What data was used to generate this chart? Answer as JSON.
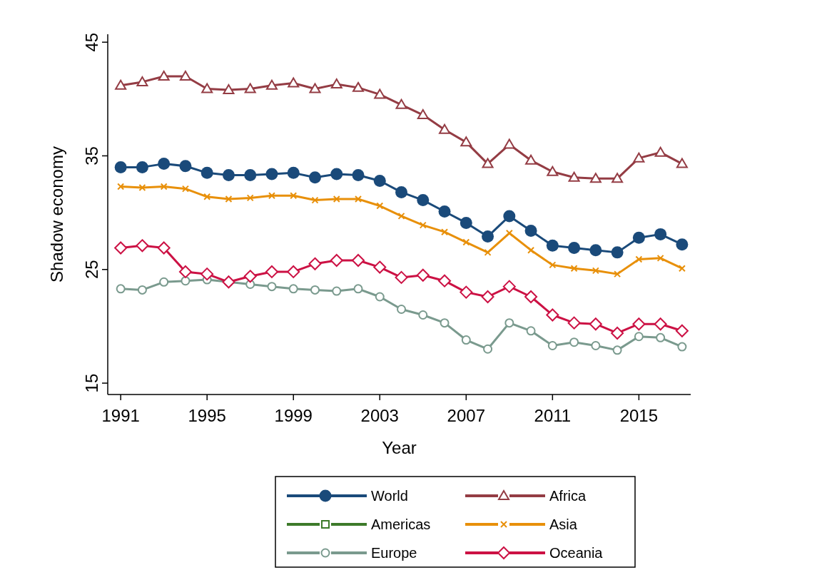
{
  "chart_data": {
    "type": "line",
    "xlabel": "Year",
    "ylabel": "Shadow economy",
    "x": [
      1991,
      1992,
      1993,
      1994,
      1995,
      1996,
      1997,
      1998,
      1999,
      2000,
      2001,
      2002,
      2003,
      2004,
      2005,
      2006,
      2007,
      2008,
      2009,
      2010,
      2011,
      2012,
      2013,
      2014,
      2015,
      2016,
      2017
    ],
    "xlim": [
      1990.4,
      2017.4
    ],
    "xticks": [
      1991,
      1995,
      1999,
      2003,
      2007,
      2011,
      2015
    ],
    "ylim": [
      14,
      45.7
    ],
    "yticks": [
      15,
      25,
      35,
      45
    ],
    "grid": false,
    "legend": "bottom",
    "line_style": "solid",
    "series": [
      {
        "name": "World",
        "color": "#1a4a7a",
        "marker": "circle",
        "values": [
          34.0,
          34.0,
          34.3,
          34.1,
          33.5,
          33.3,
          33.3,
          33.4,
          33.5,
          33.1,
          33.4,
          33.3,
          32.8,
          31.8,
          31.1,
          30.1,
          29.1,
          27.9,
          29.7,
          28.4,
          27.1,
          26.9,
          26.7,
          26.5,
          27.8,
          28.1,
          27.2
        ]
      },
      {
        "name": "Africa",
        "color": "#943c44",
        "marker": "triangle",
        "values": [
          41.2,
          41.5,
          42.0,
          42.0,
          40.9,
          40.8,
          40.9,
          41.2,
          41.4,
          40.9,
          41.3,
          41.0,
          40.4,
          39.5,
          38.6,
          37.3,
          36.2,
          34.3,
          36.0,
          34.6,
          33.6,
          33.1,
          33.0,
          33.0,
          34.8,
          35.3,
          34.3
        ]
      },
      {
        "name": "Americas",
        "color": "#3d7a2a",
        "marker": "square",
        "values": [
          null,
          null,
          null,
          null,
          null,
          null,
          null,
          null,
          null,
          null,
          null,
          null,
          null,
          null,
          null,
          null,
          null,
          null,
          null,
          null,
          null,
          null,
          null,
          null,
          null,
          null,
          null
        ]
      },
      {
        "name": "Asia",
        "color": "#e8900a",
        "marker": "cross",
        "values": [
          32.3,
          32.2,
          32.3,
          32.1,
          31.4,
          31.2,
          31.3,
          31.5,
          31.5,
          31.1,
          31.2,
          31.2,
          30.6,
          29.7,
          28.9,
          28.3,
          27.4,
          26.5,
          28.2,
          26.7,
          25.4,
          25.1,
          24.9,
          24.6,
          25.9,
          26.0,
          25.1
        ]
      },
      {
        "name": "Europe",
        "color": "#7a9a8e",
        "marker": "circle-open",
        "values": [
          23.3,
          23.2,
          23.9,
          24.0,
          24.1,
          23.9,
          23.7,
          23.5,
          23.3,
          23.2,
          23.1,
          23.3,
          22.6,
          21.5,
          21.0,
          20.3,
          18.8,
          18.0,
          20.3,
          19.6,
          18.3,
          18.6,
          18.3,
          17.9,
          19.1,
          19.0,
          18.2
        ]
      },
      {
        "name": "Oceania",
        "color": "#cc1144",
        "marker": "diamond",
        "values": [
          26.9,
          27.1,
          26.9,
          24.8,
          24.6,
          23.9,
          24.4,
          24.8,
          24.8,
          25.5,
          25.8,
          25.8,
          25.2,
          24.3,
          24.5,
          24.0,
          23.0,
          22.6,
          23.5,
          22.6,
          21.0,
          20.3,
          20.2,
          19.4,
          20.2,
          20.2,
          19.6
        ]
      }
    ]
  }
}
